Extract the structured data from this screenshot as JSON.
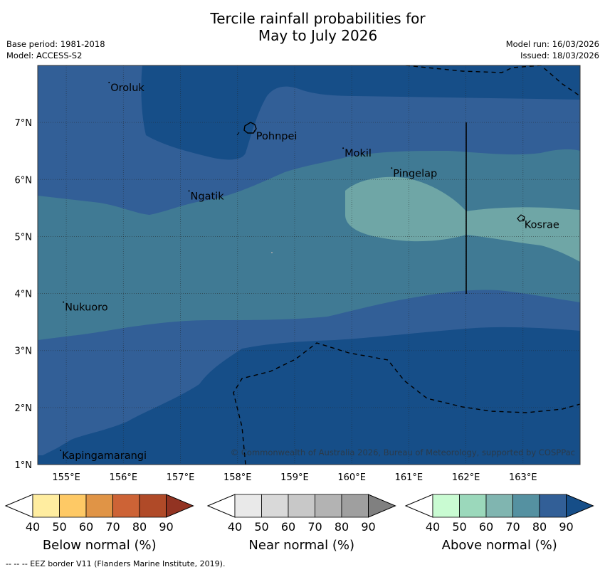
{
  "title_line1": "Tercile rainfall probabilities for",
  "title_line2": "May to July 2026",
  "base_period": "Base period: 1981-2018",
  "model": "Model: ACCESS-S2",
  "model_run": "Model run: 16/03/2026",
  "issued": "Issued: 18/03/2026",
  "copyright": "© Commonwealth of Australia 2026, Bureau of Meteorology, supported by COSPPac",
  "footer_note": "--  --  -- EEZ border V11 (Flanders Marine Institute, 2019).",
  "map": {
    "lon_range": [
      154.5,
      164.0
    ],
    "lat_range": [
      1.0,
      8.0
    ],
    "lon_ticks": [
      155,
      156,
      157,
      158,
      159,
      160,
      161,
      162,
      163
    ],
    "lat_ticks": [
      1,
      2,
      3,
      4,
      5,
      6,
      7
    ],
    "lon_tick_labels": [
      "155°E",
      "156°E",
      "157°E",
      "158°E",
      "159°E",
      "160°E",
      "161°E",
      "162°E",
      "163°E"
    ],
    "lat_tick_labels": [
      "1°N",
      "2°N",
      "3°N",
      "4°N",
      "5°N",
      "6°N",
      "7°N"
    ],
    "places": [
      {
        "name": "Oroluk",
        "lon": 155.75,
        "lat": 7.7
      },
      {
        "name": "Pohnpei",
        "lon": 158.3,
        "lat": 6.85
      },
      {
        "name": "Mokil",
        "lon": 159.85,
        "lat": 6.55
      },
      {
        "name": "Pingelap",
        "lon": 160.7,
        "lat": 6.2
      },
      {
        "name": "Ngatik",
        "lon": 157.15,
        "lat": 5.8
      },
      {
        "name": "Kosrae",
        "lon": 163.0,
        "lat": 5.3
      },
      {
        "name": "Nukuoro",
        "lon": 154.95,
        "lat": 3.85
      },
      {
        "name": "Kapingamarangi",
        "lon": 154.9,
        "lat": 1.25
      }
    ],
    "zones": [
      {
        "category": "Above normal",
        "range": "80-90",
        "color": "#164e88"
      },
      {
        "category": "Above normal",
        "range": "70-80",
        "color": "#325f97"
      },
      {
        "category": "Above normal",
        "range": "60-70",
        "color": "#407a94"
      },
      {
        "category": "Above normal",
        "range": "50-60",
        "color": "#6fa6a6"
      }
    ]
  },
  "colorbars": [
    {
      "label": "Below normal (%)",
      "ticks": [
        "40",
        "50",
        "60",
        "70",
        "80",
        "90"
      ],
      "colors": [
        "#ffeda0",
        "#fec965",
        "#e09446",
        "#cd6336",
        "#b04a28",
        "#923322"
      ]
    },
    {
      "label": "Near normal (%)",
      "ticks": [
        "40",
        "50",
        "60",
        "70",
        "80",
        "90"
      ],
      "colors": [
        "#e9e9e9",
        "#d9d9d9",
        "#c8c8c8",
        "#b3b3b3",
        "#9f9f9f",
        "#808080"
      ]
    },
    {
      "label": "Above normal (%)",
      "ticks": [
        "40",
        "50",
        "60",
        "70",
        "80",
        "90"
      ],
      "colors": [
        "#c9fbd2",
        "#9bd8bb",
        "#80b5b0",
        "#5591a1",
        "#325f97",
        "#164e88"
      ]
    }
  ]
}
